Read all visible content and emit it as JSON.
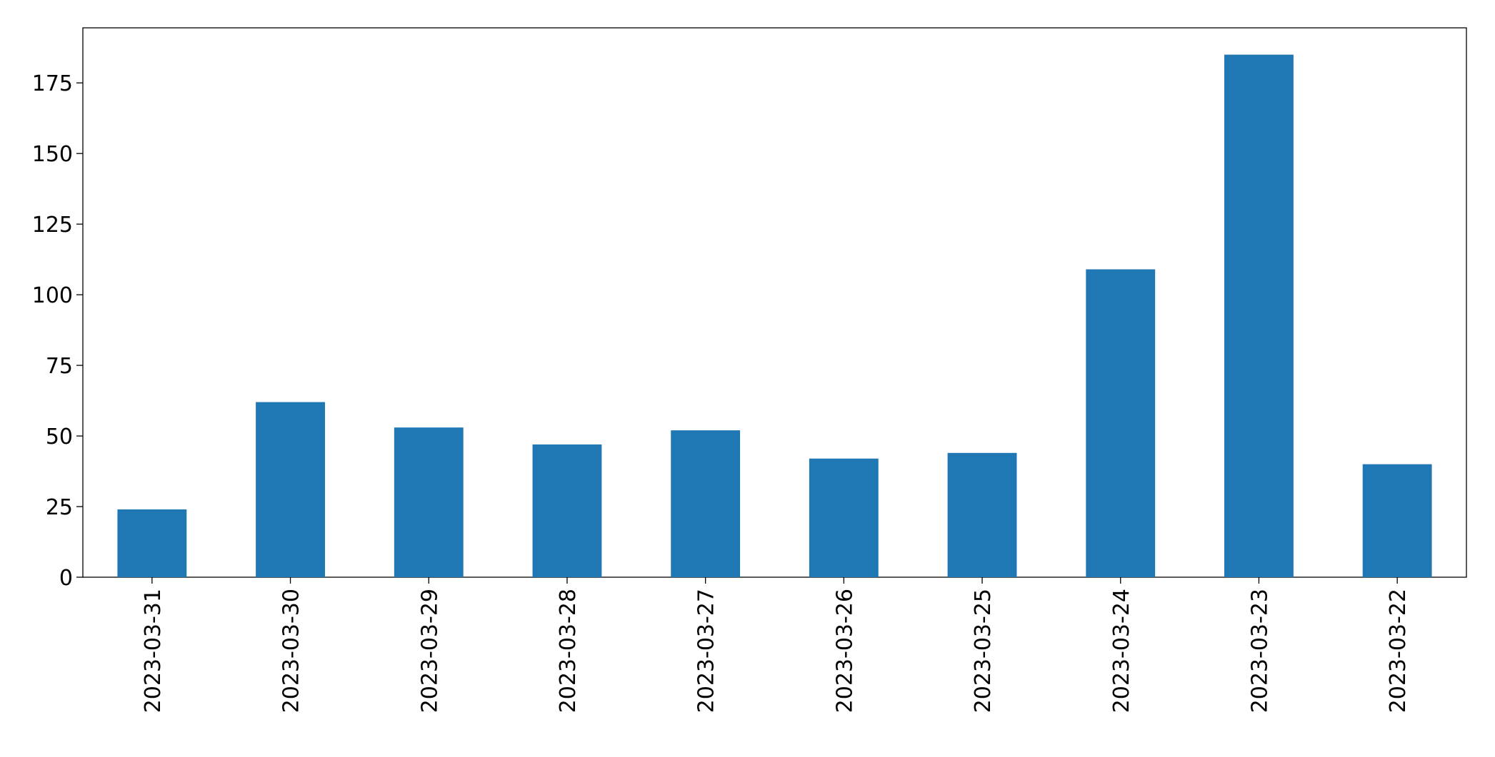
{
  "chart_data": {
    "type": "bar",
    "categories": [
      "2023-03-31",
      "2023-03-30",
      "2023-03-29",
      "2023-03-28",
      "2023-03-27",
      "2023-03-26",
      "2023-03-25",
      "2023-03-24",
      "2023-03-23",
      "2023-03-22"
    ],
    "values": [
      24,
      62,
      53,
      47,
      52,
      42,
      44,
      109,
      185,
      40
    ],
    "color": "#1f77b4",
    "ylim": [
      0,
      194.5
    ],
    "yticks": [
      0,
      25,
      50,
      75,
      100,
      125,
      150,
      175
    ],
    "grid": false
  }
}
